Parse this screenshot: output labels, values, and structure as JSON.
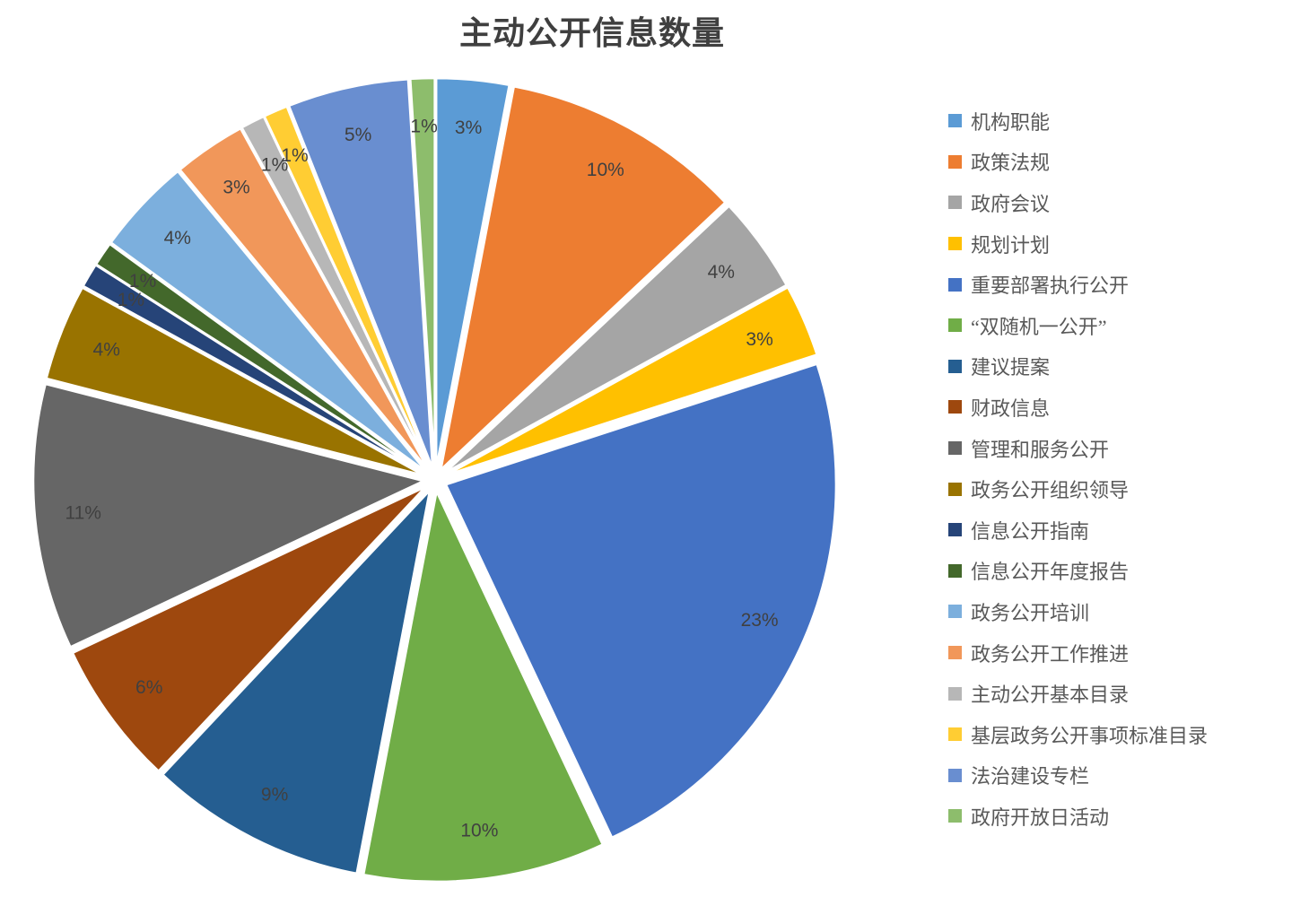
{
  "title": "主动公开信息数量",
  "chart_data": {
    "type": "pie",
    "title": "主动公开信息数量",
    "style": "exploded-pie",
    "legend_position": "right",
    "grid": false,
    "label_color": "#404040",
    "legend_text_color": "#595959",
    "title_color": "#3f3f3f",
    "series": [
      {
        "label": "机构职能",
        "value": 3,
        "percent_label": "3%",
        "color": "#5B9BD5"
      },
      {
        "label": "政策法规",
        "value": 10,
        "percent_label": "10%",
        "color": "#ED7D31"
      },
      {
        "label": "政府会议",
        "value": 4,
        "percent_label": "4%",
        "color": "#A5A5A5"
      },
      {
        "label": "规划计划",
        "value": 3,
        "percent_label": "3%",
        "color": "#FFC000"
      },
      {
        "label": "重要部署执行公开",
        "value": 23,
        "percent_label": "23%",
        "color": "#4472C4"
      },
      {
        "label": "“双随机一公开”",
        "value": 10,
        "percent_label": "10%",
        "color": "#70AD47"
      },
      {
        "label": "建议提案",
        "value": 9,
        "percent_label": "9%",
        "color": "#255E91"
      },
      {
        "label": "财政信息",
        "value": 6,
        "percent_label": "6%",
        "color": "#9E480E"
      },
      {
        "label": "管理和服务公开",
        "value": 11,
        "percent_label": "11%",
        "color": "#666666"
      },
      {
        "label": "政务公开组织领导",
        "value": 4,
        "percent_label": "4%",
        "color": "#997300"
      },
      {
        "label": "信息公开指南",
        "value": 1,
        "percent_label": "1%",
        "color": "#264478"
      },
      {
        "label": "信息公开年度报告",
        "value": 1,
        "percent_label": "1%",
        "color": "#43682B"
      },
      {
        "label": "政务公开培训",
        "value": 4,
        "percent_label": "4%",
        "color": "#7CAFDD"
      },
      {
        "label": "政务公开工作推进",
        "value": 3,
        "percent_label": "3%",
        "color": "#F1975A"
      },
      {
        "label": "主动公开基本目录",
        "value": 1,
        "percent_label": "1%",
        "color": "#B7B7B7"
      },
      {
        "label": "基层政务公开事项标准目录",
        "value": 1,
        "percent_label": "1%",
        "color": "#FFCD33"
      },
      {
        "label": "法治建设专栏",
        "value": 5,
        "percent_label": "5%",
        "color": "#698ED0"
      },
      {
        "label": "政府开放日活动",
        "value": 1,
        "percent_label": "1%",
        "color": "#8DBD6C"
      }
    ],
    "start_angle_deg": 0,
    "direction": "clockwise"
  }
}
